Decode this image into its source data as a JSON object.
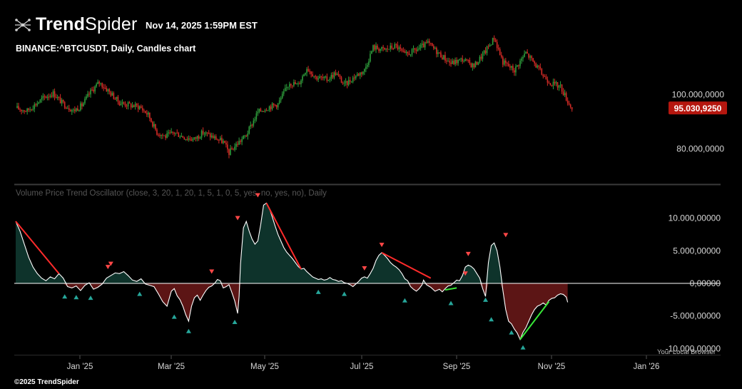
{
  "header": {
    "brand_regular": "Trend",
    "brand_light": "Spider",
    "timestamp": "Nov 14, 2025 1:59PM EST",
    "symbol_title": "BINANCE:^BTCUSDT, Daily, Candles chart",
    "copyright": "©2025 TrendSpider"
  },
  "colors": {
    "up": "#2e9e3c",
    "down": "#d52b26",
    "price_badge": "#b5170f",
    "osc_pos_fill": "#0e332b",
    "osc_neg_fill": "#5c1515",
    "trend_down": "#ff2b2b",
    "trend_up": "#38e838",
    "signal_down": "#ff4747",
    "signal_up": "#26a69a"
  },
  "chart_data": [
    {
      "type": "candlestick",
      "title": "BINANCE:^BTCUSDT, Daily, Candles chart",
      "x_ticks": [
        "Jan '25",
        "Mar '25",
        "May '25",
        "Jul '25",
        "Sep '25",
        "Nov '25",
        "Jan '26"
      ],
      "y_ticks": [
        "100.000,0000",
        "80.000,0000"
      ],
      "y_tick_values": [
        100000,
        80000
      ],
      "last_price_label": "95.030,9250",
      "last_price": 95031,
      "ylim": [
        69000,
        127000
      ],
      "close_path": [
        [
          0,
          95000
        ],
        [
          8,
          94000
        ],
        [
          14,
          96500
        ],
        [
          20,
          99000
        ],
        [
          26,
          100500
        ],
        [
          32,
          97000
        ],
        [
          40,
          94000
        ],
        [
          46,
          96000
        ],
        [
          52,
          101000
        ],
        [
          58,
          104500
        ],
        [
          64,
          101500
        ],
        [
          72,
          97000
        ],
        [
          80,
          96000
        ],
        [
          86,
          95500
        ],
        [
          92,
          92500
        ],
        [
          98,
          86000
        ],
        [
          104,
          84500
        ],
        [
          110,
          86000
        ],
        [
          118,
          84000
        ],
        [
          124,
          83500
        ],
        [
          130,
          86000
        ],
        [
          138,
          84000
        ],
        [
          144,
          82500
        ],
        [
          148,
          78500
        ],
        [
          154,
          82000
        ],
        [
          160,
          85000
        ],
        [
          168,
          93500
        ],
        [
          176,
          95500
        ],
        [
          182,
          96500
        ],
        [
          190,
          104500
        ],
        [
          196,
          103500
        ],
        [
          202,
          110000
        ],
        [
          208,
          106500
        ],
        [
          216,
          105500
        ],
        [
          222,
          108000
        ],
        [
          228,
          103500
        ],
        [
          236,
          107000
        ],
        [
          242,
          109000
        ],
        [
          248,
          117500
        ],
        [
          256,
          116500
        ],
        [
          264,
          118000
        ],
        [
          270,
          114500
        ],
        [
          278,
          116500
        ],
        [
          286,
          119000
        ],
        [
          294,
          115000
        ],
        [
          302,
          111500
        ],
        [
          310,
          113000
        ],
        [
          318,
          110500
        ],
        [
          326,
          116000
        ],
        [
          332,
          121000
        ],
        [
          338,
          112000
        ],
        [
          346,
          109000
        ],
        [
          354,
          115500
        ],
        [
          360,
          111500
        ],
        [
          366,
          107000
        ],
        [
          372,
          104000
        ],
        [
          378,
          103000
        ],
        [
          384,
          96500
        ],
        [
          386,
          95031
        ]
      ],
      "volatility": 2200
    },
    {
      "type": "area",
      "title": "Volume Price Trend Oscillator (close, 3, 20, 1, 20, 1, 5, 1, 0, 5, yes, no, yes, no), Daily",
      "y_ticks": [
        "10.000,00000",
        "5.000,00000",
        "0,00000",
        "-5.000,00000",
        "-10.000,00000"
      ],
      "y_tick_values": [
        10000,
        5000,
        0,
        -5000,
        -10000
      ],
      "ylim": [
        -10500,
        12800
      ],
      "extra_axis_label": "Your Local Browser",
      "series": [
        [
          0,
          9500
        ],
        [
          3,
          8000
        ],
        [
          6,
          6000
        ],
        [
          9,
          4000
        ],
        [
          12,
          2500
        ],
        [
          15,
          1500
        ],
        [
          18,
          800
        ],
        [
          21,
          400
        ],
        [
          24,
          1000
        ],
        [
          27,
          700
        ],
        [
          30,
          1500
        ],
        [
          33,
          800
        ],
        [
          36,
          -500
        ],
        [
          39,
          -700
        ],
        [
          42,
          -400
        ],
        [
          45,
          -1100
        ],
        [
          48,
          -300
        ],
        [
          51,
          100
        ],
        [
          54,
          -900
        ],
        [
          57,
          -600
        ],
        [
          60,
          -100
        ],
        [
          63,
          800
        ],
        [
          66,
          1200
        ],
        [
          69,
          1600
        ],
        [
          72,
          1500
        ],
        [
          75,
          1800
        ],
        [
          78,
          1200
        ],
        [
          81,
          500
        ],
        [
          84,
          300
        ],
        [
          87,
          700
        ],
        [
          90,
          -100
        ],
        [
          93,
          -300
        ],
        [
          96,
          -500
        ],
        [
          99,
          -1600
        ],
        [
          102,
          -2800
        ],
        [
          105,
          -3500
        ],
        [
          108,
          -1200
        ],
        [
          110,
          -800
        ],
        [
          112,
          -1900
        ],
        [
          114,
          -2500
        ],
        [
          116,
          -3500
        ],
        [
          118,
          -4800
        ],
        [
          120,
          -5800
        ],
        [
          122,
          -3500
        ],
        [
          124,
          -2200
        ],
        [
          126,
          -1800
        ],
        [
          128,
          -2600
        ],
        [
          130,
          -1800
        ],
        [
          132,
          -1100
        ],
        [
          134,
          -600
        ],
        [
          136,
          -400
        ],
        [
          138,
          0
        ],
        [
          140,
          600
        ],
        [
          142,
          400
        ],
        [
          144,
          -700
        ],
        [
          146,
          -500
        ],
        [
          148,
          -200
        ],
        [
          150,
          -1400
        ],
        [
          152,
          -2700
        ],
        [
          154,
          -4600
        ],
        [
          155,
          -2000
        ],
        [
          156,
          3000
        ],
        [
          158,
          8500
        ],
        [
          160,
          9500
        ],
        [
          162,
          8000
        ],
        [
          164,
          6800
        ],
        [
          166,
          6000
        ],
        [
          168,
          6500
        ],
        [
          170,
          9000
        ],
        [
          172,
          12000
        ],
        [
          174,
          12300
        ],
        [
          176,
          11500
        ],
        [
          178,
          10200
        ],
        [
          180,
          8800
        ],
        [
          182,
          7500
        ],
        [
          184,
          6500
        ],
        [
          186,
          5500
        ],
        [
          188,
          4800
        ],
        [
          190,
          4300
        ],
        [
          192,
          3800
        ],
        [
          194,
          3200
        ],
        [
          196,
          2600
        ],
        [
          198,
          2200
        ],
        [
          200,
          2300
        ],
        [
          202,
          1800
        ],
        [
          204,
          1400
        ],
        [
          206,
          1000
        ],
        [
          208,
          800
        ],
        [
          210,
          600
        ],
        [
          212,
          700
        ],
        [
          214,
          500
        ],
        [
          216,
          600
        ],
        [
          218,
          900
        ],
        [
          220,
          600
        ],
        [
          222,
          500
        ],
        [
          224,
          300
        ],
        [
          226,
          400
        ],
        [
          228,
          100
        ],
        [
          230,
          0
        ],
        [
          232,
          -200
        ],
        [
          234,
          -500
        ],
        [
          236,
          -100
        ],
        [
          238,
          300
        ],
        [
          240,
          800
        ],
        [
          242,
          1000
        ],
        [
          244,
          800
        ],
        [
          246,
          1500
        ],
        [
          248,
          2300
        ],
        [
          250,
          3500
        ],
        [
          252,
          4300
        ],
        [
          254,
          4700
        ],
        [
          256,
          4300
        ],
        [
          258,
          3800
        ],
        [
          260,
          3200
        ],
        [
          262,
          2800
        ],
        [
          264,
          2500
        ],
        [
          266,
          2100
        ],
        [
          268,
          1500
        ],
        [
          270,
          700
        ],
        [
          272,
          400
        ],
        [
          274,
          -500
        ],
        [
          276,
          -900
        ],
        [
          278,
          -1200
        ],
        [
          280,
          -800
        ],
        [
          282,
          -200
        ],
        [
          283,
          500
        ],
        [
          285,
          -200
        ],
        [
          288,
          -600
        ],
        [
          291,
          -1200
        ],
        [
          294,
          -900
        ],
        [
          296,
          -1300
        ],
        [
          298,
          -800
        ],
        [
          300,
          -400
        ],
        [
          302,
          -300
        ],
        [
          304,
          100
        ],
        [
          306,
          500
        ],
        [
          308,
          400
        ],
        [
          310,
          1200
        ],
        [
          312,
          2500
        ],
        [
          314,
          2800
        ],
        [
          316,
          2600
        ],
        [
          318,
          2200
        ],
        [
          320,
          1500
        ],
        [
          322,
          800
        ],
        [
          324,
          -800
        ],
        [
          326,
          -2000
        ],
        [
          328,
          3200
        ],
        [
          330,
          5800
        ],
        [
          332,
          6200
        ],
        [
          334,
          5000
        ],
        [
          336,
          2500
        ],
        [
          338,
          -1000
        ],
        [
          340,
          -4000
        ],
        [
          342,
          -5800
        ],
        [
          344,
          -6200
        ],
        [
          346,
          -7000
        ],
        [
          348,
          -7600
        ],
        [
          350,
          -8600
        ],
        [
          352,
          -7500
        ],
        [
          354,
          -6800
        ],
        [
          356,
          -5800
        ],
        [
          358,
          -4800
        ],
        [
          360,
          -4000
        ],
        [
          362,
          -3500
        ],
        [
          364,
          -3300
        ],
        [
          366,
          -3000
        ],
        [
          368,
          -3300
        ],
        [
          370,
          -2600
        ],
        [
          372,
          -2300
        ],
        [
          374,
          -2200
        ],
        [
          376,
          -1800
        ],
        [
          378,
          -1600
        ],
        [
          380,
          -1700
        ],
        [
          382,
          -2100
        ],
        [
          383,
          -2900
        ]
      ],
      "trendlines": [
        {
          "color": "down",
          "from": [
            0,
            9500
          ],
          "to": [
            30,
            1500
          ]
        },
        {
          "color": "down",
          "from": [
            174,
            12300
          ],
          "to": [
            198,
            2200
          ]
        },
        {
          "color": "down",
          "from": [
            254,
            4700
          ],
          "to": [
            288,
            800
          ]
        },
        {
          "color": "up",
          "from": [
            298,
            -1000
          ],
          "to": [
            306,
            -700
          ]
        },
        {
          "color": "up",
          "from": [
            350,
            -8600
          ],
          "to": [
            370,
            -2800
          ]
        }
      ],
      "signals_down": [
        [
          64,
          2500
        ],
        [
          66,
          3000
        ],
        [
          136,
          1800
        ],
        [
          154,
          10000
        ],
        [
          168,
          13500
        ],
        [
          254,
          5900
        ],
        [
          242,
          2300
        ],
        [
          314,
          4500
        ],
        [
          312,
          1500
        ],
        [
          340,
          7400
        ]
      ],
      "signals_up": [
        [
          34,
          -2000
        ],
        [
          42,
          -2100
        ],
        [
          52,
          -2200
        ],
        [
          86,
          -1600
        ],
        [
          110,
          -5100
        ],
        [
          120,
          -7300
        ],
        [
          152,
          -5900
        ],
        [
          210,
          -1300
        ],
        [
          228,
          -1600
        ],
        [
          270,
          -2600
        ],
        [
          302,
          -3000
        ],
        [
          326,
          -2500
        ],
        [
          330,
          -5500
        ],
        [
          344,
          -7500
        ],
        [
          352,
          -9800
        ]
      ]
    }
  ]
}
